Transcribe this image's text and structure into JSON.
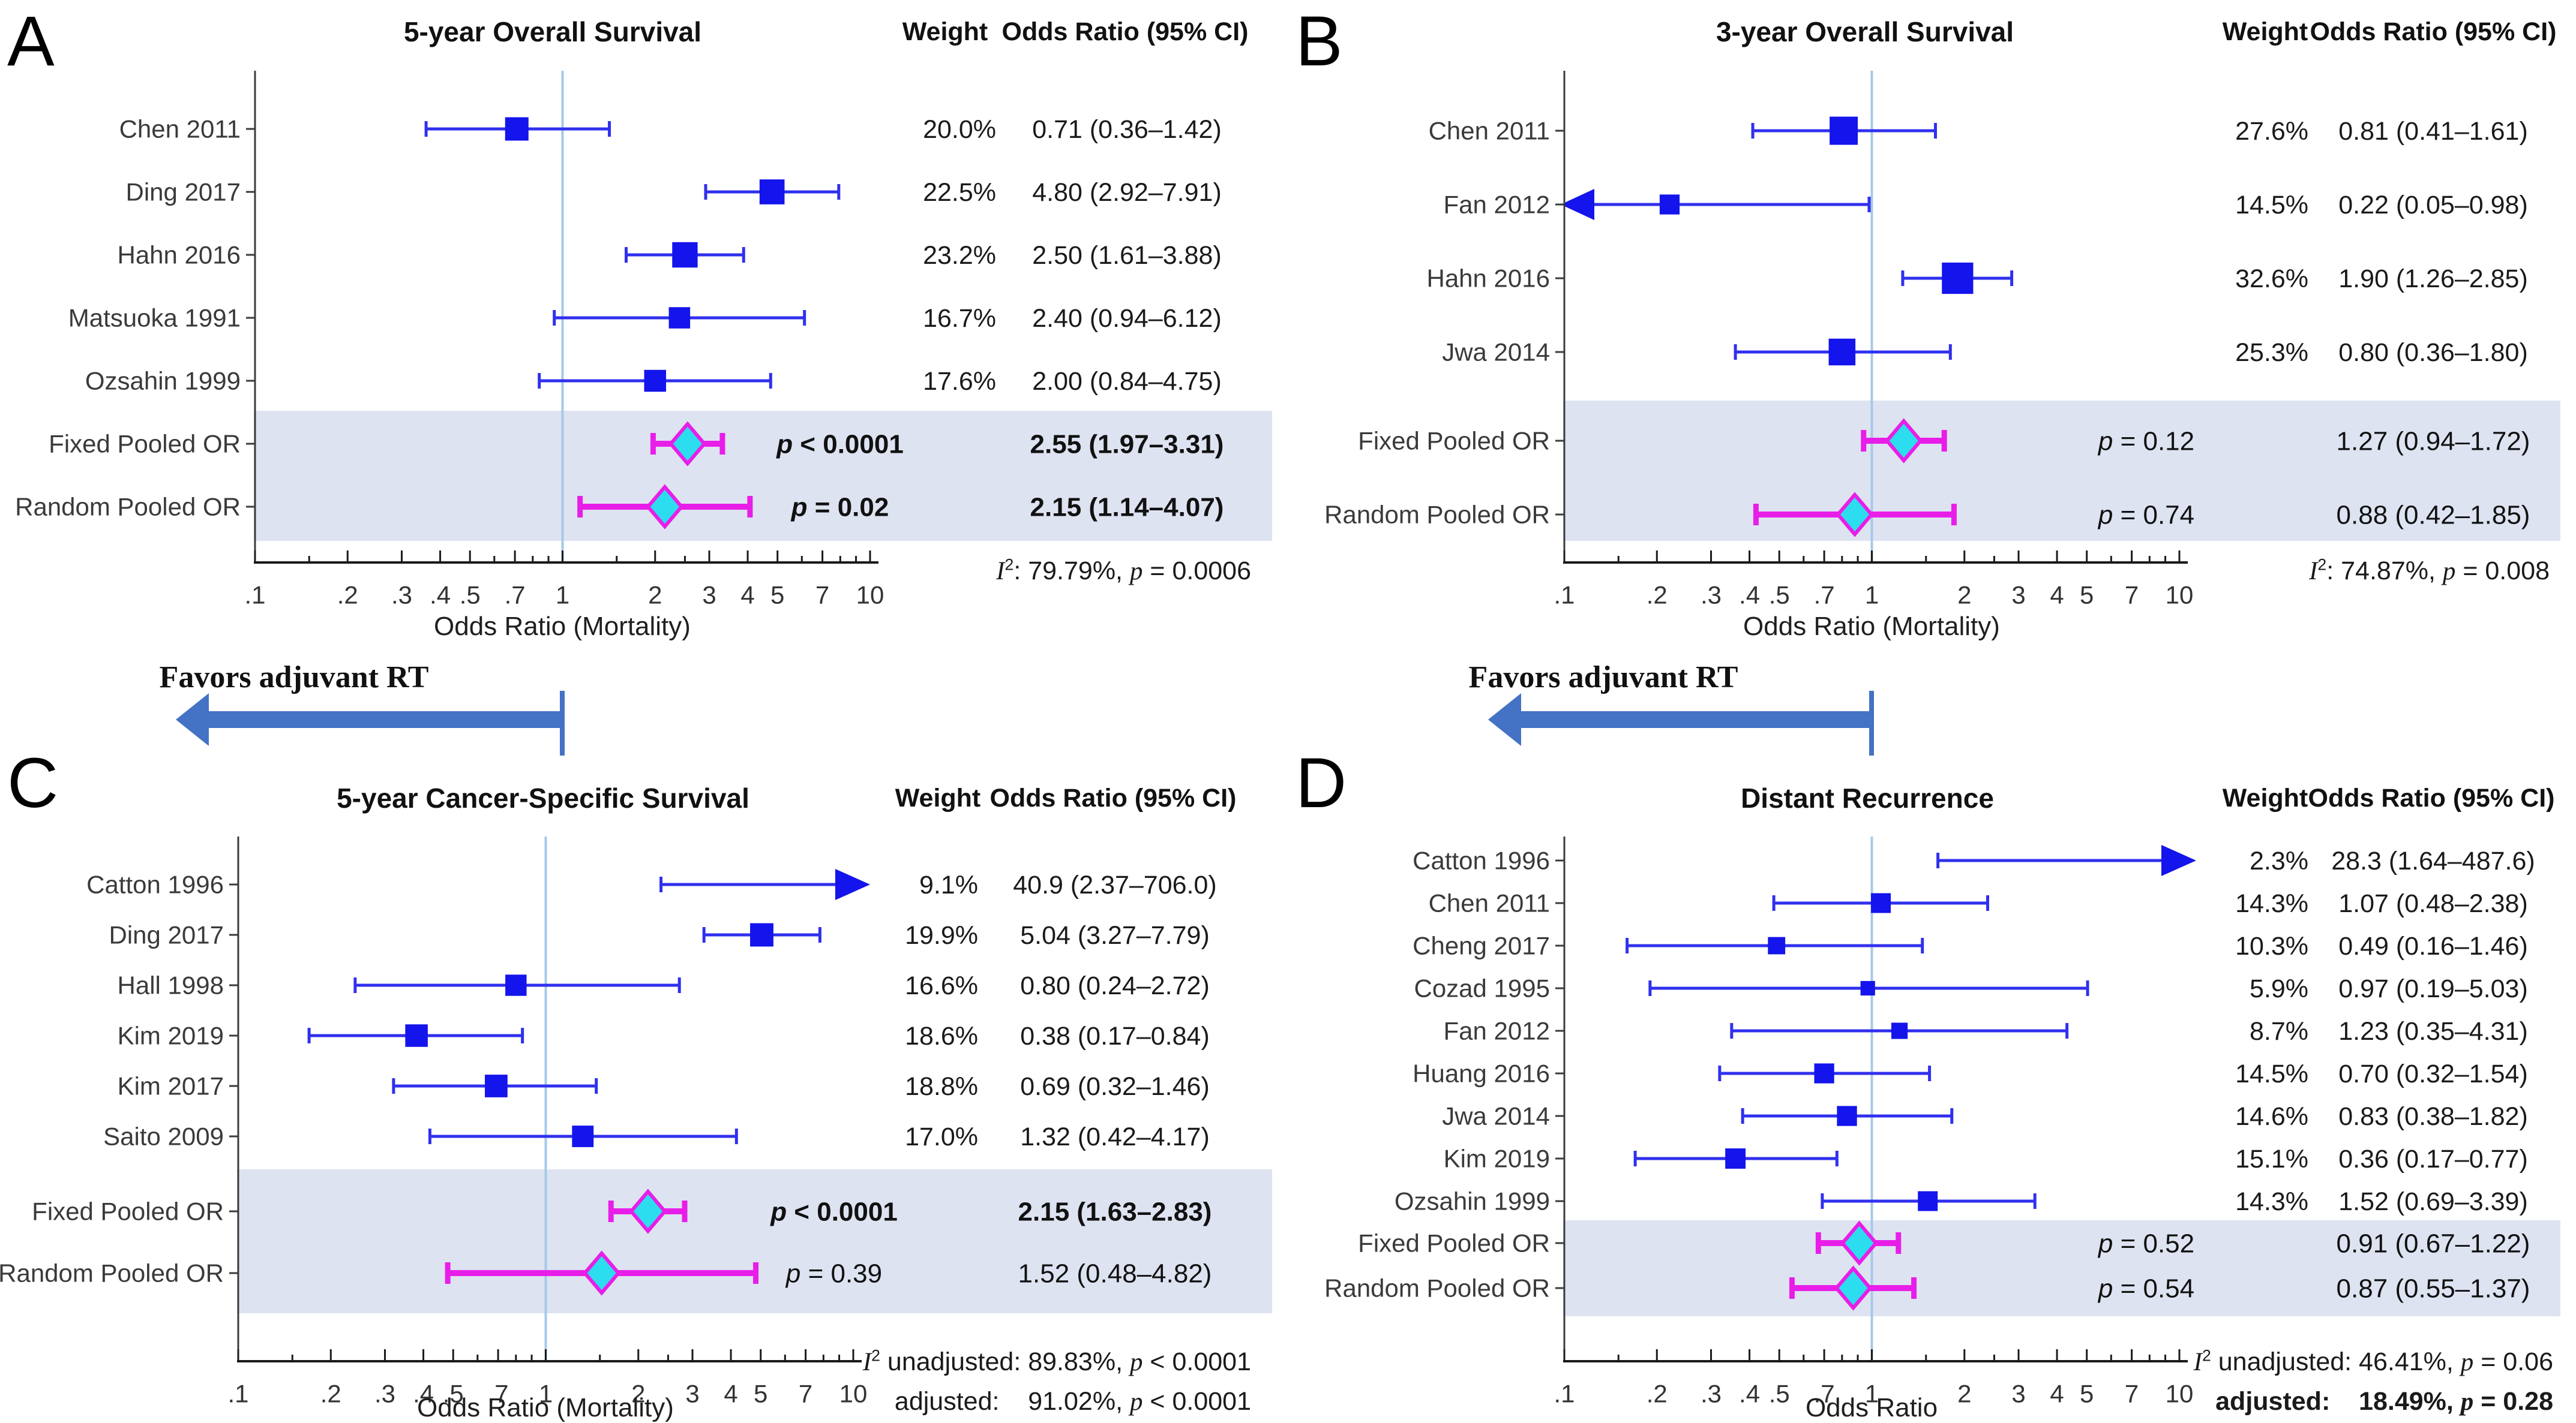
{
  "figure": {
    "headers": {
      "weight": "Weight",
      "or": "Odds Ratio (95% CI)"
    },
    "favors_label": "Favors adjuvant RT",
    "axis_ticks": [
      {
        "value": 0.1,
        "label": ".1"
      },
      {
        "value": 0.2,
        "label": ".2"
      },
      {
        "value": 0.3,
        "label": ".3"
      },
      {
        "value": 0.4,
        "label": ".4"
      },
      {
        "value": 0.5,
        "label": ".5"
      },
      {
        "value": 0.7,
        "label": ".7"
      },
      {
        "value": 1,
        "label": "1"
      },
      {
        "value": 2,
        "label": "2"
      },
      {
        "value": 3,
        "label": "3"
      },
      {
        "value": 4,
        "label": "4"
      },
      {
        "value": 5,
        "label": "5"
      },
      {
        "value": 7,
        "label": "7"
      },
      {
        "value": 10,
        "label": "10"
      }
    ],
    "axis_minor_ticks": [
      0.15,
      0.6,
      0.8,
      0.9,
      1.5,
      2.5,
      6,
      8,
      9
    ],
    "colors": {
      "study_marker": "#1414EC",
      "study_line": "#3030EE",
      "ref_line": "#A5C9E8",
      "pooled_band": "#DDE3F1",
      "diamond_fill": "#2BDDEE",
      "diamond_stroke": "#E81EE8",
      "pooled_line": "#E81EE8",
      "favors_arrow": "#4472C4",
      "axis": "#1a1a1a",
      "spine": "#3b3b3b",
      "label_text": "#3a3a3a",
      "tick_text": "#333333"
    }
  },
  "chart_data": [
    {
      "type": "scatter",
      "variant": "forest-plot",
      "panel": "A",
      "title": "5-year Overall Survival",
      "xlabel": "Odds Ratio (Mortality)",
      "xscale": "log",
      "xlim": [
        0.1,
        10
      ],
      "favors_arrow": true,
      "studies": [
        {
          "name": "Chen 2011",
          "weight": "20.0%",
          "weight_pct": 20.0,
          "or": 0.71,
          "ci_low": 0.36,
          "ci_high": 1.42,
          "or_text": "0.71 (0.36–1.42)"
        },
        {
          "name": "Ding 2017",
          "weight": "22.5%",
          "weight_pct": 22.5,
          "or": 4.8,
          "ci_low": 2.92,
          "ci_high": 7.91,
          "or_text": "4.80 (2.92–7.91)"
        },
        {
          "name": "Hahn 2016",
          "weight": "23.2%",
          "weight_pct": 23.2,
          "or": 2.5,
          "ci_low": 1.61,
          "ci_high": 3.88,
          "or_text": "2.50 (1.61–3.88)"
        },
        {
          "name": "Matsuoka 1991",
          "weight": "16.7%",
          "weight_pct": 16.7,
          "or": 2.4,
          "ci_low": 0.94,
          "ci_high": 6.12,
          "or_text": "2.40 (0.94–6.12)"
        },
        {
          "name": "Ozsahin 1999",
          "weight": "17.6%",
          "weight_pct": 17.6,
          "or": 2.0,
          "ci_low": 0.84,
          "ci_high": 4.75,
          "or_text": "2.00 (0.84–4.75)"
        }
      ],
      "pooled": [
        {
          "name": "Fixed Pooled OR",
          "p_text": "p < 0.0001",
          "or": 2.55,
          "ci_low": 1.97,
          "ci_high": 3.31,
          "or_text": "2.55 (1.97–3.31)",
          "bold": true
        },
        {
          "name": "Random Pooled OR",
          "p_text": "p = 0.02",
          "or": 2.15,
          "ci_low": 1.14,
          "ci_high": 4.07,
          "or_text": "2.15 (1.14–4.07)",
          "bold": true
        }
      ],
      "heterogeneity": [
        {
          "text": "I²: 79.79%, p = 0.0006",
          "bold": false
        }
      ]
    },
    {
      "type": "scatter",
      "variant": "forest-plot",
      "panel": "B",
      "title": "3-year Overall Survival",
      "xlabel": "Odds Ratio (Mortality)",
      "xscale": "log",
      "xlim": [
        0.1,
        10
      ],
      "favors_arrow": true,
      "studies": [
        {
          "name": "Chen 2011",
          "weight": "27.6%",
          "weight_pct": 27.6,
          "or": 0.81,
          "ci_low": 0.41,
          "ci_high": 1.61,
          "or_text": "0.81 (0.41–1.61)"
        },
        {
          "name": "Fan 2012",
          "weight": "14.5%",
          "weight_pct": 14.5,
          "or": 0.22,
          "ci_low": 0.05,
          "ci_high": 0.98,
          "or_text": "0.22 (0.05–0.98)",
          "clip_low": true
        },
        {
          "name": "Hahn 2016",
          "weight": "32.6%",
          "weight_pct": 32.6,
          "or": 1.9,
          "ci_low": 1.26,
          "ci_high": 2.85,
          "or_text": "1.90 (1.26–2.85)"
        },
        {
          "name": "Jwa 2014",
          "weight": "25.3%",
          "weight_pct": 25.3,
          "or": 0.8,
          "ci_low": 0.36,
          "ci_high": 1.8,
          "or_text": "0.80 (0.36–1.80)"
        }
      ],
      "pooled": [
        {
          "name": "Fixed Pooled OR",
          "p_text": "p = 0.12",
          "or": 1.27,
          "ci_low": 0.94,
          "ci_high": 1.72,
          "or_text": "1.27 (0.94–1.72)",
          "bold": false
        },
        {
          "name": "Random Pooled OR",
          "p_text": "p = 0.74",
          "or": 0.88,
          "ci_low": 0.42,
          "ci_high": 1.85,
          "or_text": "0.88 (0.42–1.85)",
          "bold": false
        }
      ],
      "heterogeneity": [
        {
          "text": "I²: 74.87%, p = 0.008",
          "bold": false
        }
      ]
    },
    {
      "type": "scatter",
      "variant": "forest-plot",
      "panel": "C",
      "title": "5-year Cancer-Specific Survival",
      "xlabel": "Odds Ratio (Mortality)",
      "xscale": "log",
      "xlim": [
        0.1,
        10
      ],
      "favors_arrow": false,
      "studies": [
        {
          "name": "Catton 1996",
          "weight": "9.1%",
          "weight_pct": 9.1,
          "or": 40.9,
          "ci_low": 2.37,
          "ci_high": 706.0,
          "or_text": "40.9 (2.37–706.0)",
          "clip_high": true,
          "no_marker": true
        },
        {
          "name": "Ding 2017",
          "weight": "19.9%",
          "weight_pct": 19.9,
          "or": 5.04,
          "ci_low": 3.27,
          "ci_high": 7.79,
          "or_text": "5.04 (3.27–7.79)"
        },
        {
          "name": "Hall 1998",
          "weight": "16.6%",
          "weight_pct": 16.6,
          "or": 0.8,
          "ci_low": 0.24,
          "ci_high": 2.72,
          "or_text": "0.80 (0.24–2.72)"
        },
        {
          "name": "Kim 2019",
          "weight": "18.6%",
          "weight_pct": 18.6,
          "or": 0.38,
          "ci_low": 0.17,
          "ci_high": 0.84,
          "or_text": "0.38 (0.17–0.84)"
        },
        {
          "name": "Kim 2017",
          "weight": "18.8%",
          "weight_pct": 18.8,
          "or": 0.69,
          "ci_low": 0.32,
          "ci_high": 1.46,
          "or_text": "0.69 (0.32–1.46)"
        },
        {
          "name": "Saito 2009",
          "weight": "17.0%",
          "weight_pct": 17.0,
          "or": 1.32,
          "ci_low": 0.42,
          "ci_high": 4.17,
          "or_text": "1.32 (0.42–4.17)"
        }
      ],
      "pooled": [
        {
          "name": "Fixed Pooled OR",
          "p_text": "p < 0.0001",
          "or": 2.15,
          "ci_low": 1.63,
          "ci_high": 2.83,
          "or_text": "2.15 (1.63–2.83)",
          "bold": true
        },
        {
          "name": "Random Pooled OR",
          "p_text": "p = 0.39",
          "or": 1.52,
          "ci_low": 0.48,
          "ci_high": 4.82,
          "or_text": "1.52 (0.48–4.82)",
          "bold": false
        }
      ],
      "heterogeneity": [
        {
          "text": "I² unadjusted: 89.83%, p < 0.0001",
          "bold": false
        },
        {
          "text": "adjusted:    91.02%, p < 0.0001",
          "bold": false
        }
      ]
    },
    {
      "type": "scatter",
      "variant": "forest-plot",
      "panel": "D",
      "title": "Distant Recurrence",
      "xlabel": "Odds Ratio",
      "xscale": "log",
      "xlim": [
        0.1,
        10
      ],
      "favors_arrow": false,
      "studies": [
        {
          "name": "Catton 1996",
          "weight": "2.3%",
          "weight_pct": 2.3,
          "or": 28.3,
          "ci_low": 1.64,
          "ci_high": 487.6,
          "or_text": "28.3 (1.64–487.6)",
          "clip_high": true,
          "no_marker": true
        },
        {
          "name": "Chen 2011",
          "weight": "14.3%",
          "weight_pct": 14.3,
          "or": 1.07,
          "ci_low": 0.48,
          "ci_high": 2.38,
          "or_text": "1.07 (0.48–2.38)"
        },
        {
          "name": "Cheng 2017",
          "weight": "10.3%",
          "weight_pct": 10.3,
          "or": 0.49,
          "ci_low": 0.16,
          "ci_high": 1.46,
          "or_text": "0.49 (0.16–1.46)"
        },
        {
          "name": "Cozad 1995",
          "weight": "5.9%",
          "weight_pct": 5.9,
          "or": 0.97,
          "ci_low": 0.19,
          "ci_high": 5.03,
          "or_text": "0.97 (0.19–5.03)"
        },
        {
          "name": "Fan 2012",
          "weight": "8.7%",
          "weight_pct": 8.7,
          "or": 1.23,
          "ci_low": 0.35,
          "ci_high": 4.31,
          "or_text": "1.23 (0.35–4.31)"
        },
        {
          "name": "Huang 2016",
          "weight": "14.5%",
          "weight_pct": 14.5,
          "or": 0.7,
          "ci_low": 0.32,
          "ci_high": 1.54,
          "or_text": "0.70 (0.32–1.54)"
        },
        {
          "name": "Jwa 2014",
          "weight": "14.6%",
          "weight_pct": 14.6,
          "or": 0.83,
          "ci_low": 0.38,
          "ci_high": 1.82,
          "or_text": "0.83 (0.38–1.82)"
        },
        {
          "name": "Kim 2019",
          "weight": "15.1%",
          "weight_pct": 15.1,
          "or": 0.36,
          "ci_low": 0.17,
          "ci_high": 0.77,
          "or_text": "0.36 (0.17–0.77)"
        },
        {
          "name": "Ozsahin 1999",
          "weight": "14.3%",
          "weight_pct": 14.3,
          "or": 1.52,
          "ci_low": 0.69,
          "ci_high": 3.39,
          "or_text": "1.52 (0.69–3.39)"
        }
      ],
      "pooled": [
        {
          "name": "Fixed Pooled OR",
          "p_text": "p = 0.52",
          "or": 0.91,
          "ci_low": 0.67,
          "ci_high": 1.22,
          "or_text": "0.91 (0.67–1.22)",
          "bold": false
        },
        {
          "name": "Random Pooled OR",
          "p_text": "p = 0.54",
          "or": 0.87,
          "ci_low": 0.55,
          "ci_high": 1.37,
          "or_text": "0.87 (0.55–1.37)",
          "bold": false
        }
      ],
      "heterogeneity": [
        {
          "text": "I² unadjusted: 46.41%, p = 0.06",
          "bold": false
        },
        {
          "text": "adjusted:    18.49%, p = 0.28",
          "bold": true
        }
      ]
    }
  ]
}
